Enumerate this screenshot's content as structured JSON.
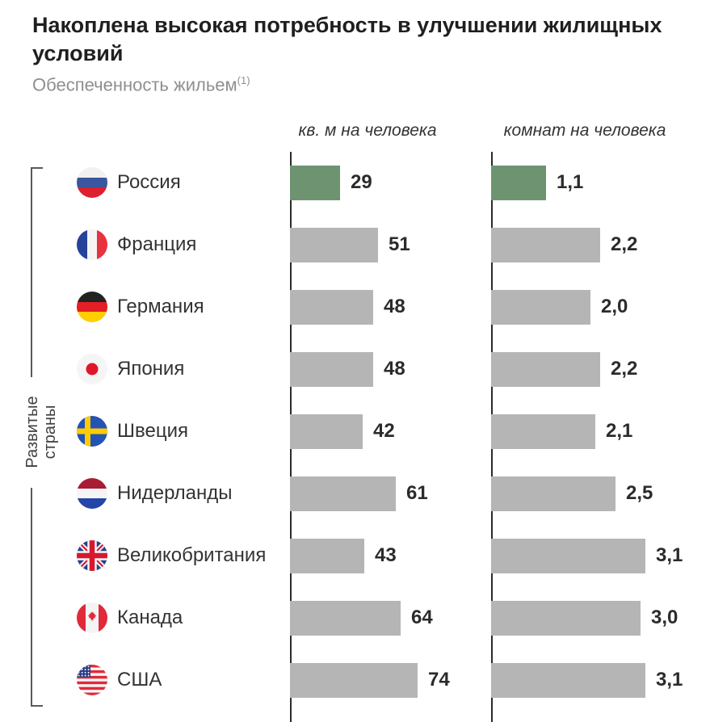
{
  "title": "Накоплена высокая потребность в улучшении жилищных условий",
  "subtitle": {
    "text": "Обеспеченность жильем",
    "footnote_marker": "(1)"
  },
  "group_label": {
    "line1": "Развитые",
    "line2": "страны"
  },
  "columns": [
    {
      "label": "кв. м на человека"
    },
    {
      "label": "комнат на человека"
    }
  ],
  "colors": {
    "highlight": "#6E9371",
    "bar_default": "#B5B5B5",
    "axis": "#2B2B2B",
    "bracket": "#5A5A5A",
    "title": "#1F1F1F",
    "subtitle": "#8F8F8F"
  },
  "chart_data": {
    "type": "bar",
    "orientation": "horizontal",
    "title": "Обеспеченность жильем",
    "categories": [
      "Россия",
      "Франция",
      "Германия",
      "Япония",
      "Швеция",
      "Нидерланды",
      "Великобритания",
      "Канада",
      "США"
    ],
    "flags": [
      "ru",
      "fr",
      "de",
      "jp",
      "se",
      "nl",
      "gb",
      "ca",
      "us"
    ],
    "series": [
      {
        "name": "кв. м на человека",
        "values": [
          29,
          51,
          48,
          48,
          42,
          61,
          43,
          64,
          74
        ],
        "labels": [
          "29",
          "51",
          "48",
          "48",
          "42",
          "61",
          "43",
          "64",
          "74"
        ],
        "xlim": [
          0,
          80
        ]
      },
      {
        "name": "комнат на человека",
        "values": [
          1.1,
          2.2,
          2.0,
          2.2,
          2.1,
          2.5,
          3.1,
          3.0,
          3.1
        ],
        "labels": [
          "1,1",
          "2,2",
          "2,0",
          "2,2",
          "2,1",
          "2,5",
          "3,1",
          "3,0",
          "3,1"
        ],
        "xlim": [
          0,
          3.5
        ]
      }
    ],
    "highlight_category": "Россия",
    "legend": "none",
    "grid": "off"
  }
}
